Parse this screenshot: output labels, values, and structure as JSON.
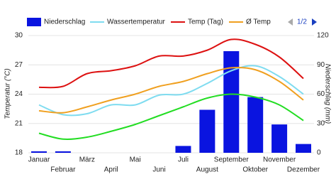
{
  "chart_data": {
    "type": "bar-line",
    "legend_page": "1/2",
    "y_label": "Temperatur (°C)",
    "y2_label": "Niederschlag (mm)",
    "categories": [
      "Januar",
      "Februar",
      "März",
      "April",
      "Mai",
      "Juni",
      "Juli",
      "August",
      "September",
      "Oktober",
      "November",
      "Dezember"
    ],
    "ylim": [
      18,
      30
    ],
    "yticks": [
      18,
      21,
      24,
      27,
      30
    ],
    "y2lim": [
      0,
      120
    ],
    "y2ticks": [
      0,
      30,
      60,
      90,
      120
    ],
    "grid": true,
    "series": [
      {
        "name": "Niederschlag",
        "kind": "bar",
        "axis": "y2",
        "color": "#0a14e0",
        "values": [
          1.5,
          1.5,
          0,
          0,
          0,
          0,
          7,
          44,
          104,
          57,
          29,
          9
        ]
      },
      {
        "name": "Wassertemperatur",
        "kind": "line",
        "color": "#7fdcf0",
        "values": [
          22.9,
          21.9,
          22.0,
          22.9,
          22.9,
          23.9,
          24.0,
          25.1,
          26.4,
          26.9,
          25.8,
          24.0
        ]
      },
      {
        "name": "Temp (Tag)",
        "kind": "line",
        "color": "#dd1111",
        "values": [
          24.7,
          24.8,
          26.1,
          26.4,
          26.9,
          27.9,
          27.9,
          28.5,
          29.6,
          29.1,
          27.8,
          25.6
        ]
      },
      {
        "name": "Ø Temp",
        "kind": "line",
        "color": "#f0a020",
        "values": [
          22.3,
          22.1,
          22.7,
          23.4,
          24.0,
          24.8,
          25.3,
          26.1,
          26.7,
          26.5,
          25.3,
          23.4
        ]
      },
      {
        "kind": "line",
        "color": "#22dd22",
        "values": [
          20.0,
          19.4,
          19.6,
          20.2,
          20.9,
          21.8,
          22.7,
          23.6,
          24.0,
          23.7,
          22.9,
          21.3
        ]
      }
    ]
  }
}
